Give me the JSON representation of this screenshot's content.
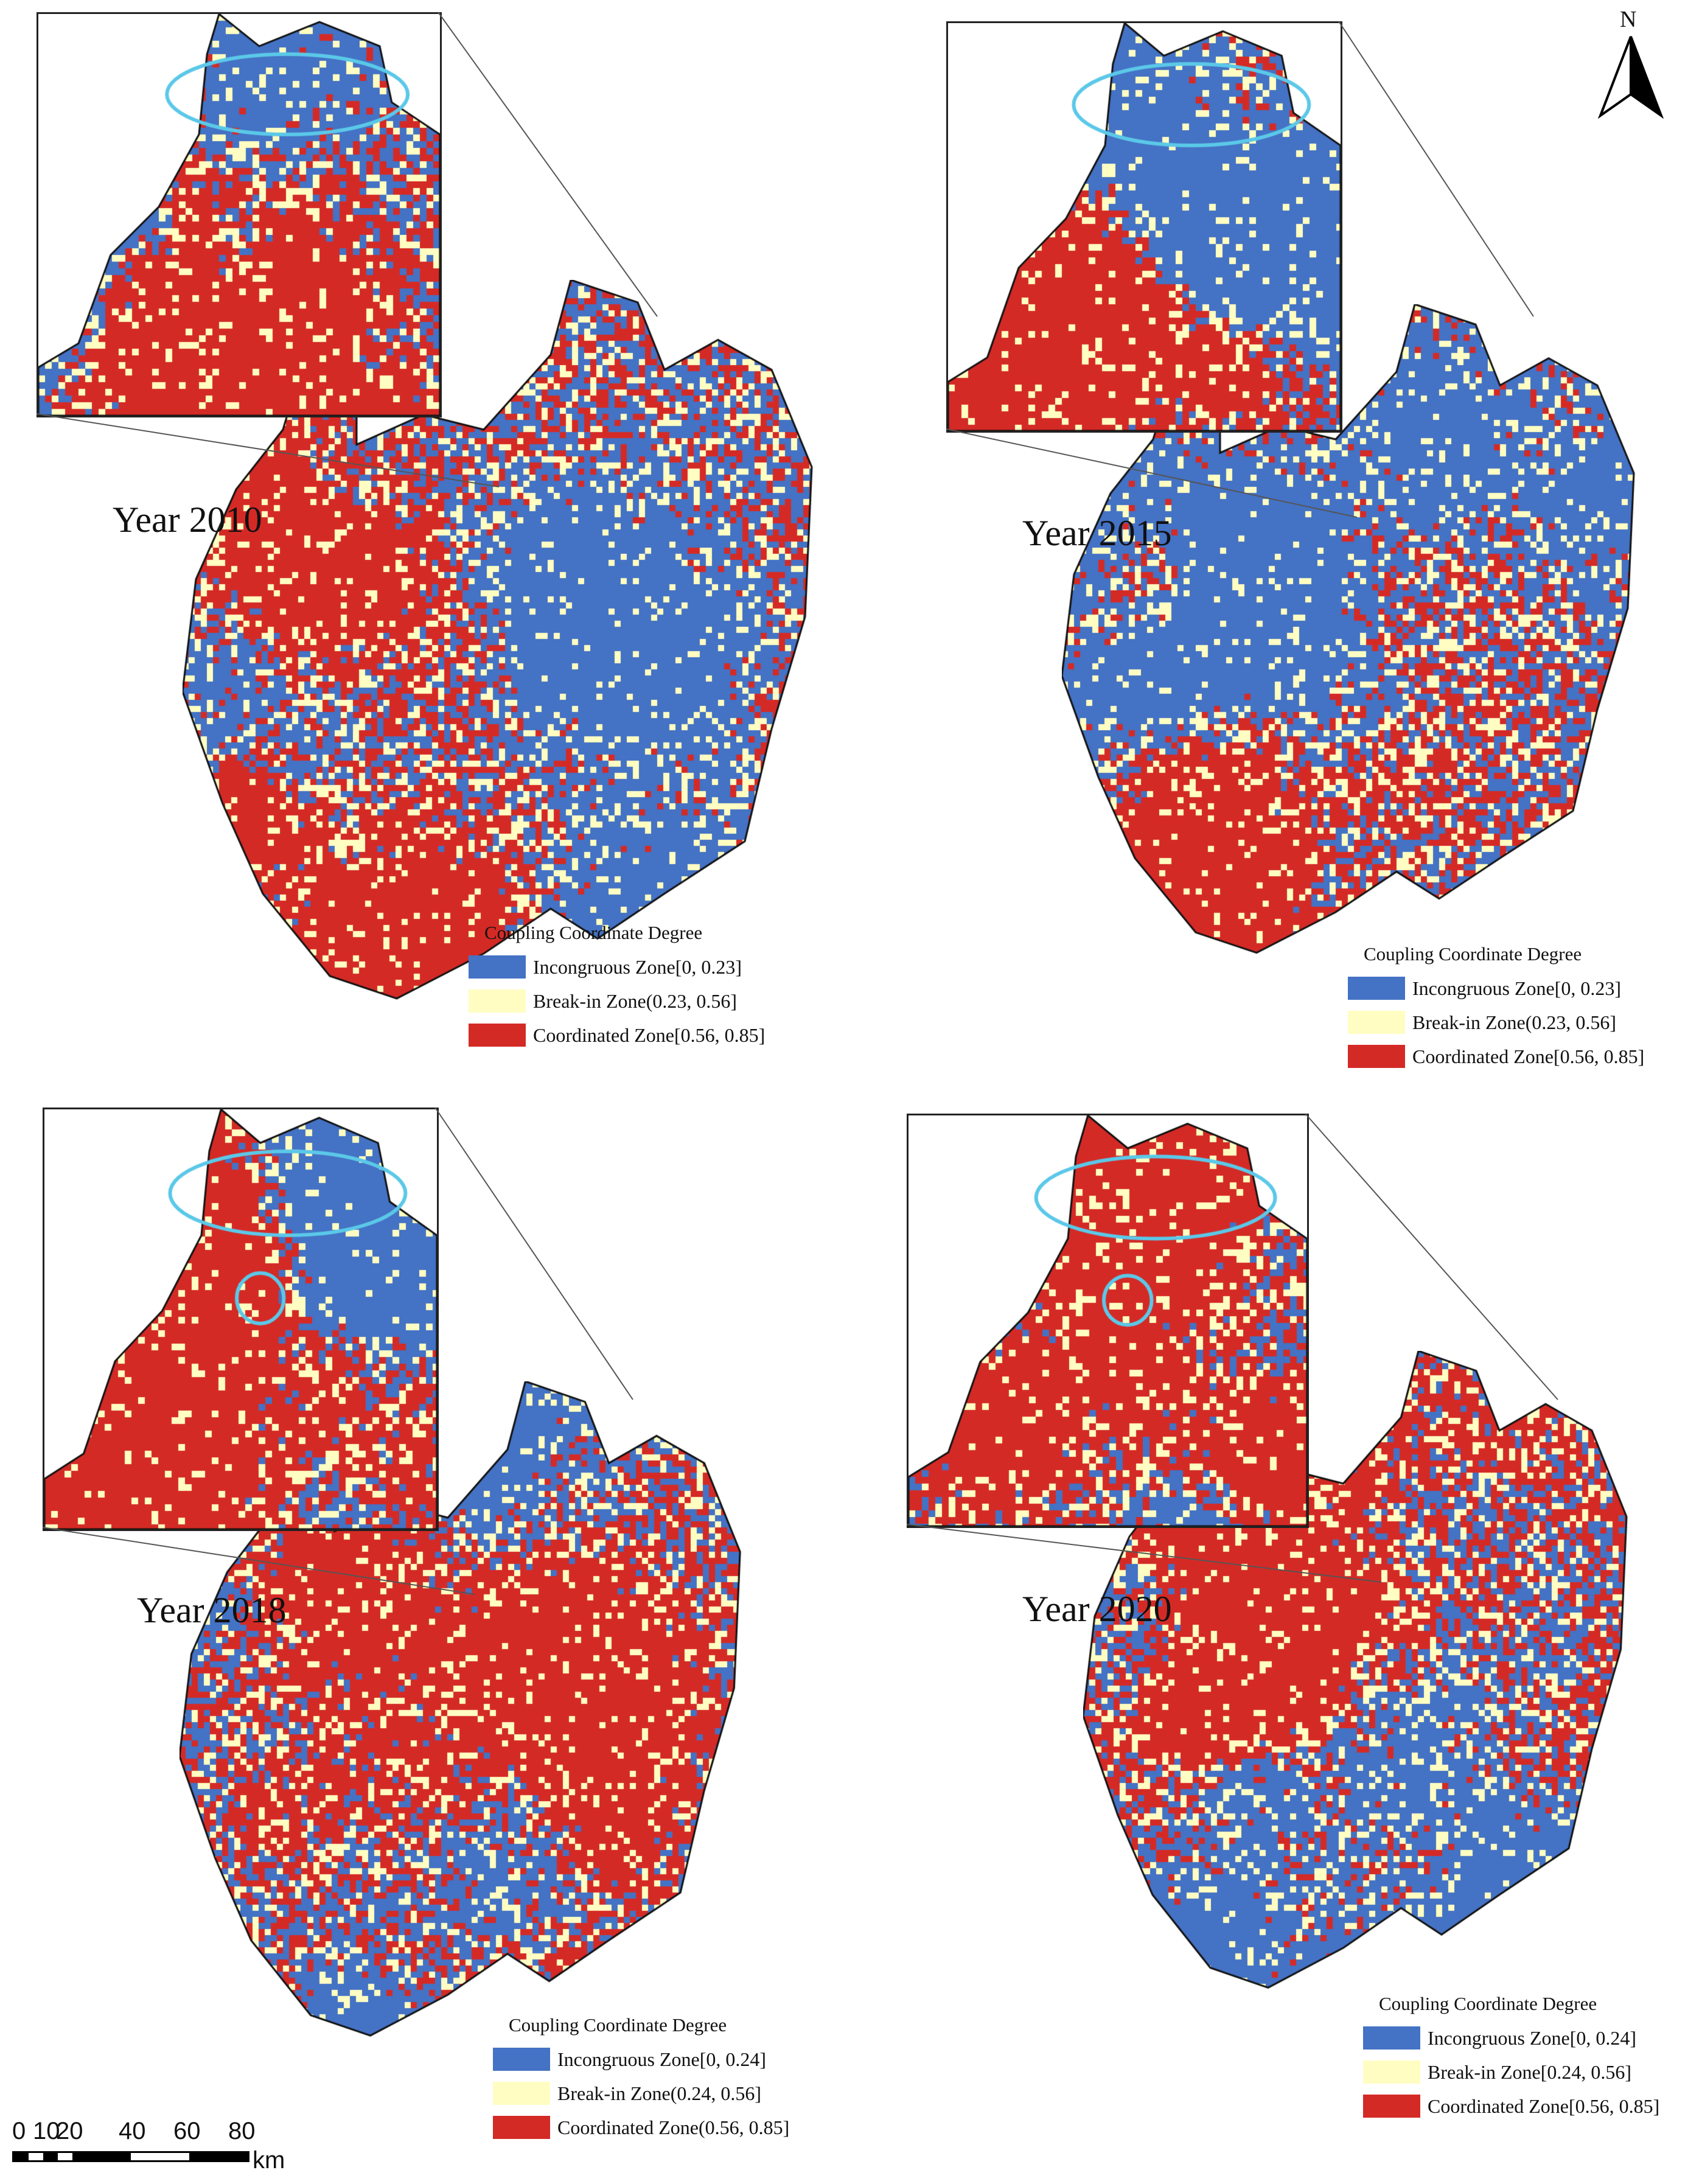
{
  "panels": [
    {
      "year_label": "Year 2010",
      "legend": {
        "title": "Coupling Coordinate Degree",
        "items": [
          {
            "label": "Incongruous Zone[0, 0.23]",
            "color": "#4472C4"
          },
          {
            "label": "Break-in Zone(0.23, 0.56]",
            "color": "#FFFDC2"
          },
          {
            "label": "Coordinated Zone[0.56, 0.85]",
            "color": "#D42A26"
          }
        ]
      }
    },
    {
      "year_label": "Year 2015",
      "legend": {
        "title": "Coupling Coordinate Degree",
        "items": [
          {
            "label": "Incongruous  Zone[0, 0.23]",
            "color": "#4472C4"
          },
          {
            "label": "Break-in Zone(0.23, 0.56]",
            "color": "#FFFDC2"
          },
          {
            "label": "Coordinated Zone[0.56, 0.85]",
            "color": "#D42A26"
          }
        ]
      }
    },
    {
      "year_label": "Year 2018",
      "legend": {
        "title": "Coupling Coordinate Degree",
        "items": [
          {
            "label": "Incongruous Zone[0, 0.24]",
            "color": "#4472C4"
          },
          {
            "label": "Break-in Zone(0.24, 0.56]",
            "color": "#FFFDC2"
          },
          {
            "label": "Coordinated Zone(0.56, 0.85]",
            "color": "#D42A26"
          }
        ]
      }
    },
    {
      "year_label": "Year 2020",
      "legend": {
        "title": "Coupling Coordinate Degree",
        "items": [
          {
            "label": "Incongruous Zone[0, 0.24]",
            "color": "#4472C4"
          },
          {
            "label": "Break-in Zone[0.24, 0.56]",
            "color": "#FFFDC2"
          },
          {
            "label": "Coordinated Zone[0.56, 0.85]",
            "color": "#D42A26"
          }
        ]
      }
    }
  ],
  "scale_bar": {
    "ticks": [
      "0",
      "10",
      "20",
      "40",
      "60",
      "80"
    ],
    "unit": "km"
  },
  "north_arrow": {
    "label": "N",
    "icon": "north-arrow-icon"
  },
  "highlight_color": "#5BC8E8"
}
